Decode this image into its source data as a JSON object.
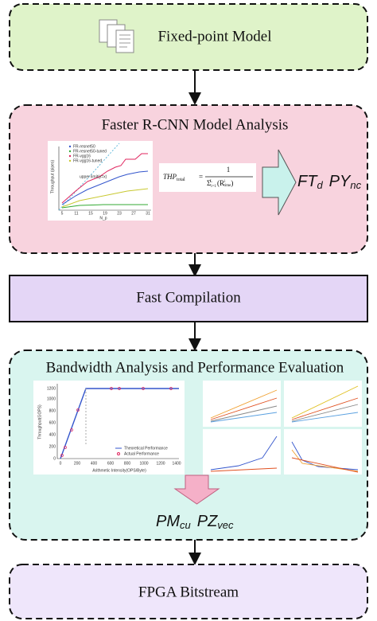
{
  "steps": [
    {
      "title": "Fixed-point Model"
    },
    {
      "title": "Faster R-CNN Model Analysis",
      "plot": {
        "legend": [
          "FR-resnet50",
          "FR-resnet50-tuned",
          "FR-vgg16",
          "FR-vgg16-tuned"
        ],
        "annotation": "upper limit(y=x)",
        "y_label": "Throughput (pipes)",
        "x_label": "N_p",
        "x_ticks": [
          "5",
          "11",
          "15",
          "19",
          "23",
          "27",
          "31"
        ]
      },
      "formula": {
        "lhs": "THP",
        "lhs_sub": "total",
        "eq": "=",
        "numerator": "1",
        "sigma": "Σ",
        "sigma_sub": "i=1",
        "sigma_sup": "L",
        "term": "(R",
        "term_sup": "i",
        "term_sub": "time",
        "term_close": ")"
      },
      "outputs": [
        {
          "main": "FT",
          "sub": "d"
        },
        {
          "main": "PY",
          "sub": "nc"
        }
      ]
    },
    {
      "title": "Fast Compilation"
    },
    {
      "title": "Bandwidth Analysis and Performance Evaluation",
      "plot": {
        "y_label": "Throughput(GOPS)",
        "x_label": "Arithmetic Intensity(OPS/Byte)",
        "legend": [
          "Theoretical Performance",
          "Actual Performance"
        ],
        "y_ticks": [
          "0",
          "200",
          "400",
          "600",
          "800",
          "1000",
          "1200"
        ],
        "x_ticks": [
          "0",
          "200",
          "400",
          "600",
          "800",
          "1000",
          "1200",
          "1400"
        ]
      },
      "outputs": [
        {
          "main": "PM",
          "sub": "cu"
        },
        {
          "main": "PZ",
          "sub": "vec"
        }
      ]
    },
    {
      "title": "FPGA Bitstream"
    }
  ]
}
